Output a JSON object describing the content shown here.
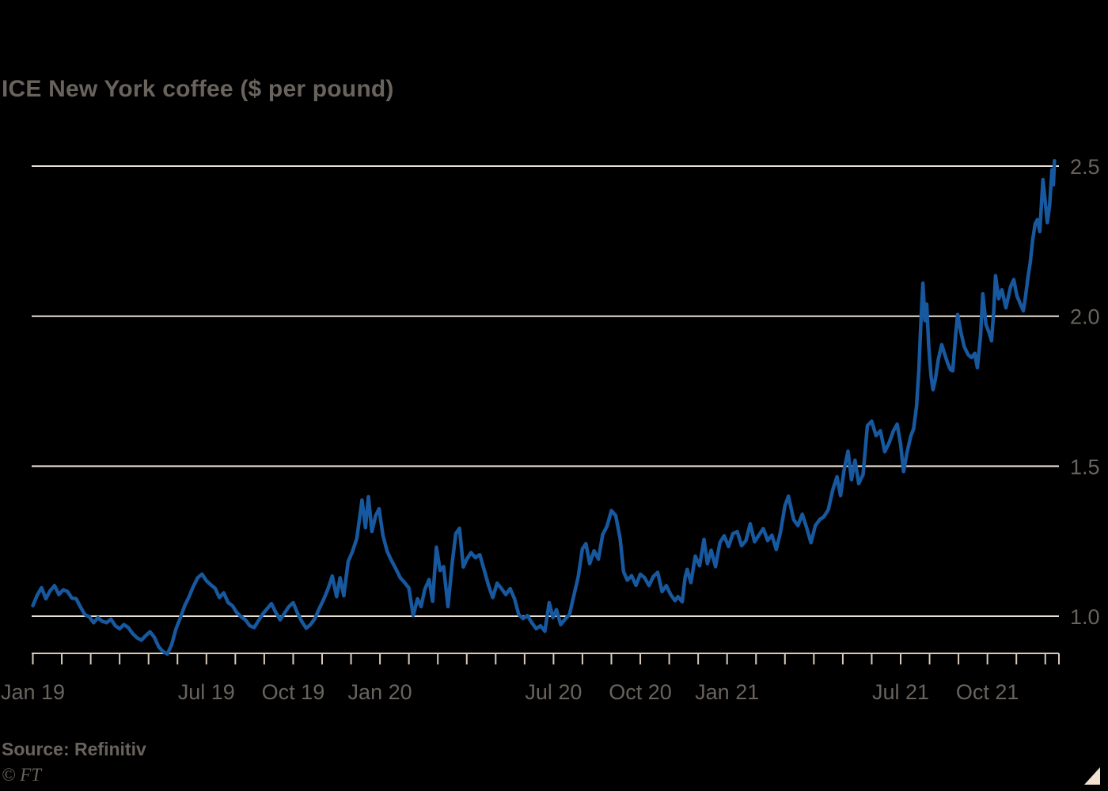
{
  "title": "ICE New York coffee ($ per pound)",
  "source_label": "Source: Refinitiv",
  "copyright_label": "© FT",
  "colors": {
    "background": "#000000",
    "line": "#17589E",
    "gridline": "#EBDFD1",
    "axis": "#D8CABB",
    "text": "#69635D",
    "corner_triangle": "#F2E2D2"
  },
  "chart_data": {
    "type": "line",
    "title": "ICE New York coffee ($ per pound)",
    "x_unit": "months since Jan 2019",
    "grid": "horizontal only",
    "legend": "none",
    "x_axis": {
      "tick_interval_months": 1,
      "first_month": "Jan 2019",
      "last_month": "Dec 2021",
      "labels": [
        {
          "month_index": 0,
          "label": "Jan 19"
        },
        {
          "month_index": 6,
          "label": "Jul 19"
        },
        {
          "month_index": 9,
          "label": "Oct 19"
        },
        {
          "month_index": 12,
          "label": "Jan 20"
        },
        {
          "month_index": 18,
          "label": "Jul 20"
        },
        {
          "month_index": 21,
          "label": "Oct 20"
        },
        {
          "month_index": 24,
          "label": "Jan 21"
        },
        {
          "month_index": 30,
          "label": "Jul 21"
        },
        {
          "month_index": 33,
          "label": "Oct 21"
        }
      ]
    },
    "y_axis": {
      "side": "right",
      "ylim": [
        0.82,
        2.62
      ],
      "ticks": [
        {
          "value": 1.0,
          "label": "1.0"
        },
        {
          "value": 1.5,
          "label": "1.5"
        },
        {
          "value": 2.0,
          "label": "2.0"
        },
        {
          "value": 2.5,
          "label": "2.5"
        }
      ]
    },
    "series": [
      {
        "name": "ICE New York coffee price ($ per pound)",
        "points": [
          [
            0.0,
            1.035
          ],
          [
            0.15,
            1.07
          ],
          [
            0.3,
            1.095
          ],
          [
            0.45,
            1.058
          ],
          [
            0.6,
            1.085
          ],
          [
            0.75,
            1.102
          ],
          [
            0.9,
            1.072
          ],
          [
            1.05,
            1.088
          ],
          [
            1.2,
            1.082
          ],
          [
            1.35,
            1.06
          ],
          [
            1.5,
            1.058
          ],
          [
            1.65,
            1.03
          ],
          [
            1.8,
            1.005
          ],
          [
            1.95,
            0.998
          ],
          [
            2.1,
            0.978
          ],
          [
            2.25,
            0.995
          ],
          [
            2.4,
            0.983
          ],
          [
            2.55,
            0.978
          ],
          [
            2.7,
            0.99
          ],
          [
            2.85,
            0.968
          ],
          [
            3.0,
            0.958
          ],
          [
            3.15,
            0.972
          ],
          [
            3.3,
            0.962
          ],
          [
            3.45,
            0.942
          ],
          [
            3.6,
            0.928
          ],
          [
            3.75,
            0.92
          ],
          [
            3.9,
            0.935
          ],
          [
            4.05,
            0.948
          ],
          [
            4.2,
            0.93
          ],
          [
            4.35,
            0.898
          ],
          [
            4.5,
            0.882
          ],
          [
            4.65,
            0.874
          ],
          [
            4.8,
            0.905
          ],
          [
            4.95,
            0.958
          ],
          [
            5.1,
            0.995
          ],
          [
            5.25,
            1.035
          ],
          [
            5.4,
            1.065
          ],
          [
            5.55,
            1.1
          ],
          [
            5.7,
            1.128
          ],
          [
            5.85,
            1.14
          ],
          [
            6.0,
            1.118
          ],
          [
            6.15,
            1.105
          ],
          [
            6.3,
            1.093
          ],
          [
            6.45,
            1.062
          ],
          [
            6.6,
            1.078
          ],
          [
            6.75,
            1.045
          ],
          [
            6.9,
            1.035
          ],
          [
            7.05,
            1.012
          ],
          [
            7.2,
            0.998
          ],
          [
            7.35,
            0.988
          ],
          [
            7.5,
            0.968
          ],
          [
            7.65,
            0.962
          ],
          [
            7.8,
            0.985
          ],
          [
            7.95,
            1.008
          ],
          [
            8.1,
            1.025
          ],
          [
            8.25,
            1.042
          ],
          [
            8.4,
            1.012
          ],
          [
            8.55,
            0.988
          ],
          [
            8.7,
            1.01
          ],
          [
            8.85,
            1.032
          ],
          [
            9.0,
            1.045
          ],
          [
            9.15,
            1.01
          ],
          [
            9.3,
            0.982
          ],
          [
            9.45,
            0.96
          ],
          [
            9.6,
            0.972
          ],
          [
            9.75,
            0.992
          ],
          [
            9.9,
            1.025
          ],
          [
            10.05,
            1.055
          ],
          [
            10.2,
            1.09
          ],
          [
            10.35,
            1.134
          ],
          [
            10.5,
            1.065
          ],
          [
            10.62,
            1.128
          ],
          [
            10.75,
            1.068
          ],
          [
            10.9,
            1.182
          ],
          [
            11.05,
            1.216
          ],
          [
            11.2,
            1.26
          ],
          [
            11.38,
            1.387
          ],
          [
            11.5,
            1.295
          ],
          [
            11.6,
            1.398
          ],
          [
            11.72,
            1.282
          ],
          [
            11.85,
            1.335
          ],
          [
            11.97,
            1.358
          ],
          [
            12.1,
            1.27
          ],
          [
            12.25,
            1.216
          ],
          [
            12.4,
            1.185
          ],
          [
            12.55,
            1.158
          ],
          [
            12.7,
            1.128
          ],
          [
            12.85,
            1.112
          ],
          [
            13.0,
            1.094
          ],
          [
            13.15,
            1.002
          ],
          [
            13.3,
            1.058
          ],
          [
            13.42,
            1.032
          ],
          [
            13.55,
            1.09
          ],
          [
            13.7,
            1.122
          ],
          [
            13.82,
            1.05
          ],
          [
            13.95,
            1.23
          ],
          [
            14.08,
            1.152
          ],
          [
            14.2,
            1.165
          ],
          [
            14.35,
            1.032
          ],
          [
            14.5,
            1.18
          ],
          [
            14.62,
            1.275
          ],
          [
            14.75,
            1.293
          ],
          [
            14.88,
            1.164
          ],
          [
            15.0,
            1.19
          ],
          [
            15.15,
            1.212
          ],
          [
            15.3,
            1.195
          ],
          [
            15.45,
            1.205
          ],
          [
            15.6,
            1.155
          ],
          [
            15.75,
            1.103
          ],
          [
            15.9,
            1.062
          ],
          [
            16.05,
            1.11
          ],
          [
            16.2,
            1.092
          ],
          [
            16.35,
            1.072
          ],
          [
            16.5,
            1.092
          ],
          [
            16.65,
            1.058
          ],
          [
            16.8,
            1.005
          ],
          [
            16.95,
            0.992
          ],
          [
            17.1,
            1.002
          ],
          [
            17.25,
            0.978
          ],
          [
            17.4,
            0.958
          ],
          [
            17.55,
            0.968
          ],
          [
            17.7,
            0.95
          ],
          [
            17.85,
            1.045
          ],
          [
            17.98,
            0.995
          ],
          [
            18.1,
            1.022
          ],
          [
            18.25,
            0.972
          ],
          [
            18.4,
            0.99
          ],
          [
            18.55,
            1.005
          ],
          [
            18.7,
            1.068
          ],
          [
            18.85,
            1.13
          ],
          [
            19.0,
            1.225
          ],
          [
            19.12,
            1.242
          ],
          [
            19.25,
            1.175
          ],
          [
            19.4,
            1.218
          ],
          [
            19.55,
            1.19
          ],
          [
            19.7,
            1.272
          ],
          [
            19.85,
            1.3
          ],
          [
            20.0,
            1.352
          ],
          [
            20.15,
            1.335
          ],
          [
            20.3,
            1.26
          ],
          [
            20.42,
            1.148
          ],
          [
            20.55,
            1.12
          ],
          [
            20.7,
            1.135
          ],
          [
            20.85,
            1.103
          ],
          [
            21.0,
            1.14
          ],
          [
            21.15,
            1.128
          ],
          [
            21.3,
            1.102
          ],
          [
            21.45,
            1.132
          ],
          [
            21.6,
            1.146
          ],
          [
            21.75,
            1.082
          ],
          [
            21.9,
            1.102
          ],
          [
            22.05,
            1.072
          ],
          [
            22.2,
            1.052
          ],
          [
            22.3,
            1.065
          ],
          [
            22.45,
            1.048
          ],
          [
            22.55,
            1.13
          ],
          [
            22.62,
            1.156
          ],
          [
            22.75,
            1.112
          ],
          [
            22.9,
            1.2
          ],
          [
            23.05,
            1.168
          ],
          [
            23.2,
            1.256
          ],
          [
            23.32,
            1.175
          ],
          [
            23.45,
            1.22
          ],
          [
            23.6,
            1.165
          ],
          [
            23.75,
            1.245
          ],
          [
            23.9,
            1.268
          ],
          [
            24.05,
            1.232
          ],
          [
            24.2,
            1.275
          ],
          [
            24.35,
            1.282
          ],
          [
            24.5,
            1.235
          ],
          [
            24.65,
            1.252
          ],
          [
            24.8,
            1.308
          ],
          [
            24.95,
            1.248
          ],
          [
            25.1,
            1.27
          ],
          [
            25.25,
            1.292
          ],
          [
            25.4,
            1.252
          ],
          [
            25.55,
            1.27
          ],
          [
            25.7,
            1.222
          ],
          [
            25.85,
            1.282
          ],
          [
            26.0,
            1.368
          ],
          [
            26.12,
            1.4
          ],
          [
            26.3,
            1.322
          ],
          [
            26.45,
            1.302
          ],
          [
            26.6,
            1.34
          ],
          [
            26.75,
            1.295
          ],
          [
            26.9,
            1.245
          ],
          [
            27.05,
            1.302
          ],
          [
            27.2,
            1.322
          ],
          [
            27.35,
            1.332
          ],
          [
            27.5,
            1.355
          ],
          [
            27.65,
            1.42
          ],
          [
            27.8,
            1.465
          ],
          [
            27.92,
            1.402
          ],
          [
            28.05,
            1.49
          ],
          [
            28.18,
            1.55
          ],
          [
            28.3,
            1.455
          ],
          [
            28.42,
            1.52
          ],
          [
            28.55,
            1.442
          ],
          [
            28.7,
            1.472
          ],
          [
            28.85,
            1.635
          ],
          [
            29.0,
            1.65
          ],
          [
            29.15,
            1.602
          ],
          [
            29.3,
            1.618
          ],
          [
            29.45,
            1.548
          ],
          [
            29.6,
            1.578
          ],
          [
            29.75,
            1.618
          ],
          [
            29.88,
            1.64
          ],
          [
            30.0,
            1.572
          ],
          [
            30.1,
            1.482
          ],
          [
            30.22,
            1.545
          ],
          [
            30.35,
            1.6
          ],
          [
            30.45,
            1.625
          ],
          [
            30.55,
            1.7
          ],
          [
            30.63,
            1.82
          ],
          [
            30.7,
            1.98
          ],
          [
            30.77,
            2.11
          ],
          [
            30.84,
            1.985
          ],
          [
            30.9,
            2.04
          ],
          [
            30.97,
            1.9
          ],
          [
            31.05,
            1.8
          ],
          [
            31.12,
            1.755
          ],
          [
            31.2,
            1.79
          ],
          [
            31.3,
            1.855
          ],
          [
            31.42,
            1.905
          ],
          [
            31.5,
            1.88
          ],
          [
            31.62,
            1.845
          ],
          [
            31.72,
            1.822
          ],
          [
            31.8,
            1.818
          ],
          [
            31.9,
            1.935
          ],
          [
            31.97,
            2.005
          ],
          [
            32.08,
            1.948
          ],
          [
            32.2,
            1.898
          ],
          [
            32.33,
            1.872
          ],
          [
            32.45,
            1.862
          ],
          [
            32.56,
            1.876
          ],
          [
            32.65,
            1.828
          ],
          [
            32.76,
            1.932
          ],
          [
            32.84,
            2.075
          ],
          [
            32.95,
            1.972
          ],
          [
            33.06,
            1.945
          ],
          [
            33.14,
            1.918
          ],
          [
            33.22,
            2.02
          ],
          [
            33.28,
            2.135
          ],
          [
            33.39,
            2.058
          ],
          [
            33.5,
            2.088
          ],
          [
            33.64,
            2.028
          ],
          [
            33.8,
            2.098
          ],
          [
            33.91,
            2.122
          ],
          [
            34.02,
            2.068
          ],
          [
            34.13,
            2.042
          ],
          [
            34.24,
            2.018
          ],
          [
            34.32,
            2.068
          ],
          [
            34.4,
            2.128
          ],
          [
            34.48,
            2.178
          ],
          [
            34.57,
            2.258
          ],
          [
            34.65,
            2.308
          ],
          [
            34.73,
            2.322
          ],
          [
            34.81,
            2.282
          ],
          [
            34.92,
            2.455
          ],
          [
            35.0,
            2.378
          ],
          [
            35.07,
            2.312
          ],
          [
            35.15,
            2.368
          ],
          [
            35.23,
            2.488
          ],
          [
            35.28,
            2.438
          ],
          [
            35.32,
            2.518
          ]
        ]
      }
    ]
  }
}
